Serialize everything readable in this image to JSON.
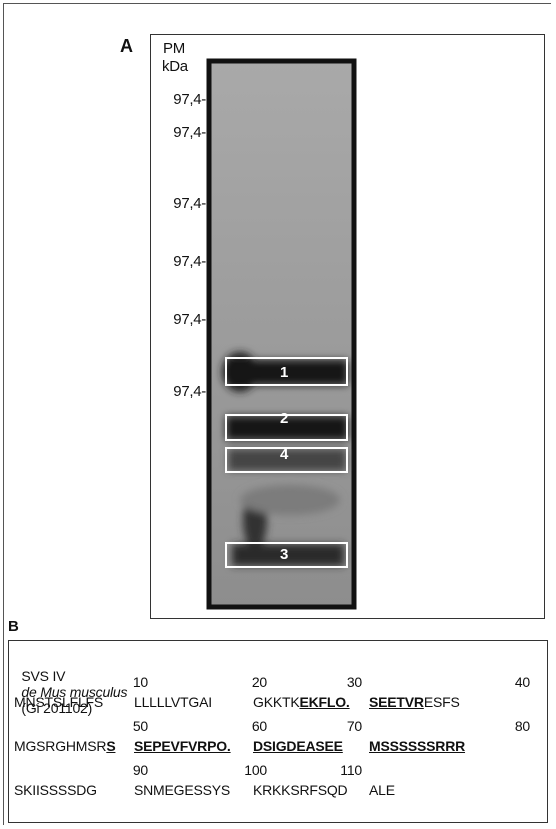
{
  "panel_a": {
    "label": "A",
    "units": [
      "PM",
      "kDa"
    ],
    "markers": [
      "97,4-",
      "97,4-",
      "97,4-",
      "97,4-",
      "97,4-",
      "97,4-"
    ],
    "bands": [
      "1",
      "2",
      "4",
      "3"
    ]
  },
  "panel_b": {
    "label": "B",
    "title": {
      "protein": "SVS IV",
      "species": "de Mus musculus",
      "id": "(Gi 201102)"
    },
    "rows": [
      {
        "numbers": [
          10,
          20,
          30,
          40
        ],
        "groups": [
          [
            {
              "text": "MNSTSLFLFS",
              "bold": false
            }
          ],
          [
            {
              "text": "LLLLLVTGAI",
              "bold": false
            }
          ],
          [
            {
              "text": "GKKTK",
              "bold": false
            },
            {
              "text": "EKFLO.",
              "bold": true
            }
          ],
          [
            {
              "text": "SEETVR",
              "bold": true
            },
            {
              "text": "ESFS",
              "bold": false
            }
          ]
        ]
      },
      {
        "numbers": [
          50,
          60,
          70,
          80
        ],
        "groups": [
          [
            {
              "text": "MGSRGHMSR",
              "bold": false
            },
            {
              "text": "S",
              "bold": true
            }
          ],
          [
            {
              "text": "SEPEVFVRPO.",
              "bold": true
            }
          ],
          [
            {
              "text": "DSIGDEASEE",
              "bold": true
            }
          ],
          [
            {
              "text": "MSSSSSSRRR",
              "bold": true
            }
          ]
        ]
      },
      {
        "numbers": [
          90,
          100,
          110
        ],
        "groups": [
          [
            {
              "text": "SKIISSSSDG",
              "bold": false
            }
          ],
          [
            {
              "text": "SNMEGESSYS",
              "bold": false
            }
          ],
          [
            {
              "text": "KRKKSRFSQD",
              "bold": false
            }
          ],
          [
            {
              "text": "ALE",
              "bold": false
            }
          ]
        ]
      }
    ]
  }
}
